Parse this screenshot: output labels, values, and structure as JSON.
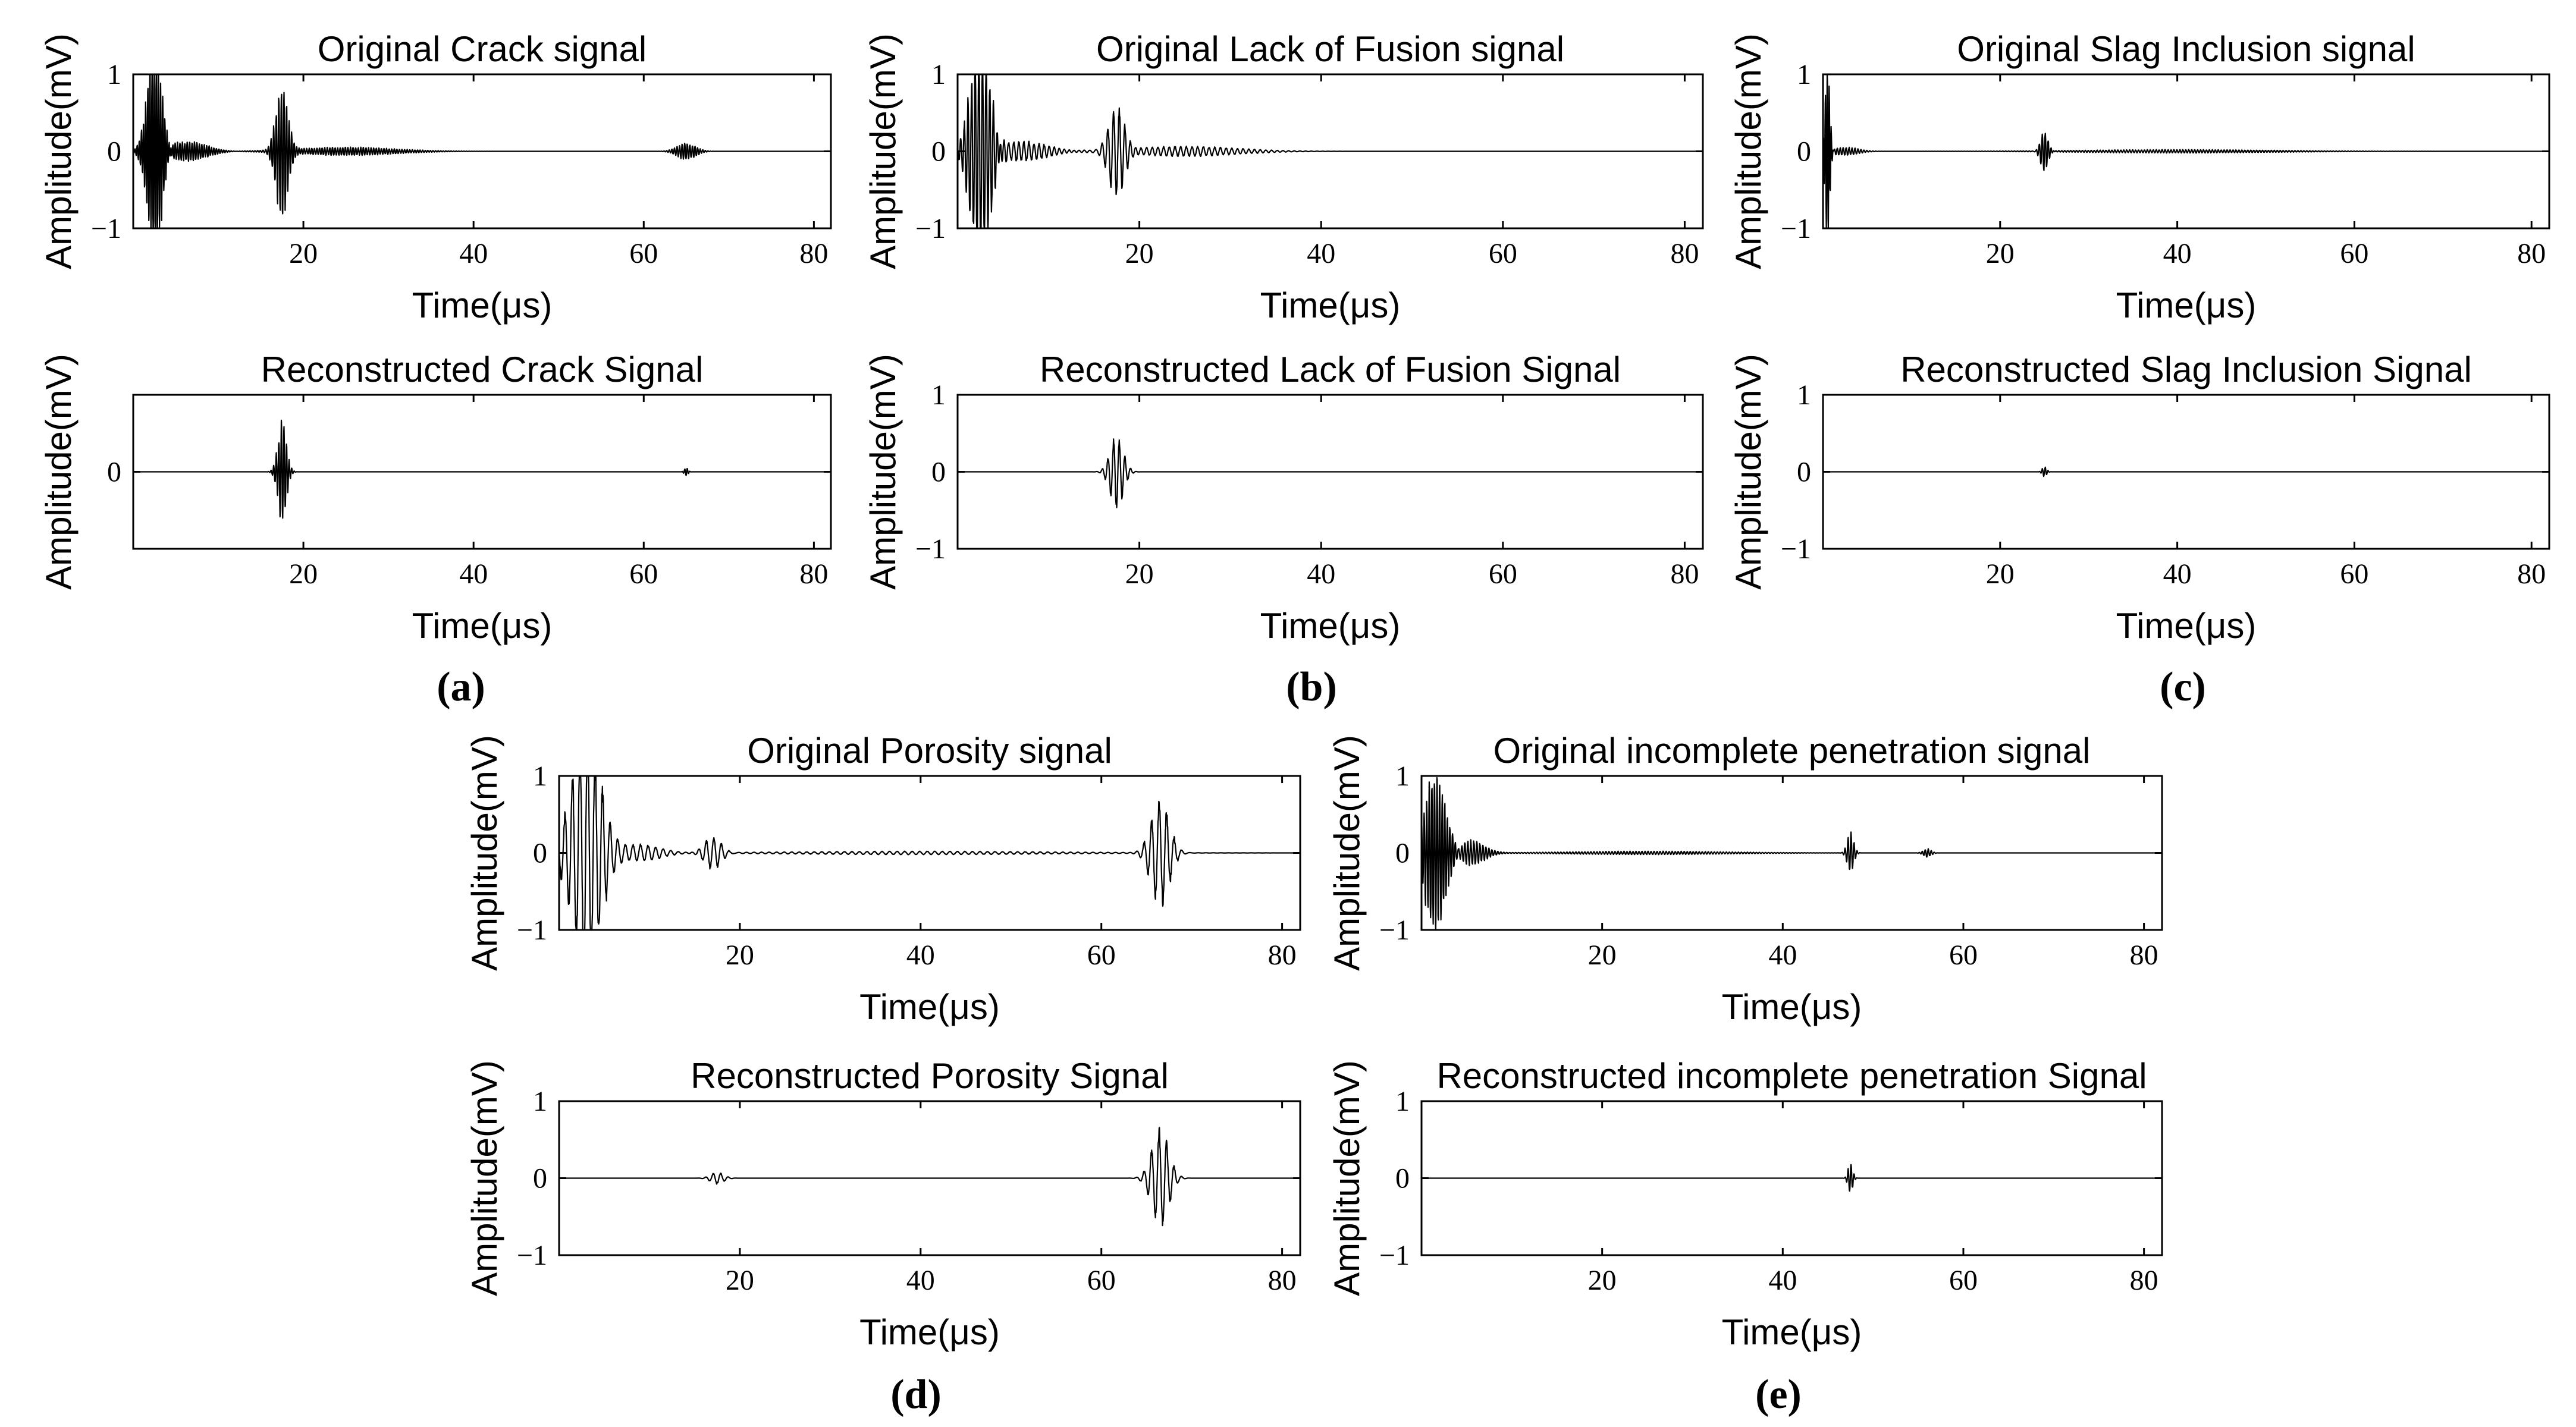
{
  "figure": {
    "panel_labels": [
      "(a)",
      "(b)",
      "(c)",
      "(d)",
      "(e)"
    ]
  },
  "chart_data": [
    {
      "panel": "(a)",
      "type": "line",
      "title": "Original Crack signal",
      "xlabel": "Time(μs)",
      "ylabel": "Amplitude(mV)",
      "xlim": [
        0,
        82
      ],
      "ylim": [
        -1,
        1
      ],
      "xticks": [
        20,
        40,
        60,
        80
      ],
      "yticks": [
        -1,
        0,
        1
      ],
      "ytick_labels": [
        "−1",
        "0",
        "1"
      ],
      "series": [
        {
          "values": [
            {
              "center": 2.5,
              "amplitude": 1.3,
              "width": 1.2,
              "freq": 4.0
            },
            {
              "center": 6.5,
              "amplitude": 0.12,
              "width": 3.0,
              "freq": 3.5
            },
            {
              "center": 17.5,
              "amplitude": 0.8,
              "width": 1.0,
              "freq": 3.3
            },
            {
              "center": 25,
              "amplitude": 0.05,
              "width": 8.0,
              "freq": 3.3
            },
            {
              "center": 65,
              "amplitude": 0.1,
              "width": 1.5,
              "freq": 3.3
            }
          ]
        }
      ]
    },
    {
      "panel": "(a)",
      "type": "line",
      "title": "Reconstructed Crack Signal",
      "xlabel": "Time(μs)",
      "ylabel": "Amplitude(mV)",
      "xlim": [
        0,
        82
      ],
      "ylim": [
        -1,
        1
      ],
      "xticks": [
        20,
        40,
        60,
        80
      ],
      "yticks": [
        0
      ],
      "ytick_labels": [
        "0"
      ],
      "series": [
        {
          "values": [
            {
              "center": 17.5,
              "amplitude": 0.6,
              "width": 0.7,
              "freq": 3.3
            },
            {
              "center": 65,
              "amplitude": 0.05,
              "width": 0.3,
              "freq": 3.3
            }
          ]
        }
      ]
    },
    {
      "panel": "(b)",
      "type": "line",
      "title": "Original Lack of Fusion signal",
      "xlabel": "Time(μs)",
      "ylabel": "Amplitude(mV)",
      "xlim": [
        0,
        82
      ],
      "ylim": [
        -1,
        1
      ],
      "xticks": [
        20,
        40,
        60,
        80
      ],
      "yticks": [
        -1,
        0,
        1
      ],
      "ytick_labels": [
        "−1",
        "0",
        "1"
      ],
      "series": [
        {
          "values": [
            {
              "center": 2.5,
              "amplitude": 1.4,
              "width": 1.5,
              "freq": 2.5
            },
            {
              "center": 7,
              "amplitude": 0.12,
              "width": 4.0,
              "freq": 1.8
            },
            {
              "center": 17.5,
              "amplitude": 0.55,
              "width": 1.2,
              "freq": 1.6
            },
            {
              "center": 25,
              "amplitude": 0.06,
              "width": 8.0,
              "freq": 1.6
            }
          ]
        }
      ]
    },
    {
      "panel": "(b)",
      "type": "line",
      "title": "Reconstructed Lack of Fusion Signal",
      "xlabel": "Time(μs)",
      "ylabel": "Amplitude(mV)",
      "xlim": [
        0,
        82
      ],
      "ylim": [
        -1,
        1
      ],
      "xticks": [
        20,
        40,
        60,
        80
      ],
      "yticks": [
        -1,
        0,
        1
      ],
      "ytick_labels": [
        "−1",
        "0",
        "1"
      ],
      "series": [
        {
          "values": [
            {
              "center": 17.5,
              "amplitude": 0.45,
              "width": 1.0,
              "freq": 1.6
            }
          ]
        }
      ]
    },
    {
      "panel": "(c)",
      "type": "line",
      "title": "Original Slag Inclusion signal",
      "xlabel": "Time(μs)",
      "ylabel": "Amplitude(mV)",
      "xlim": [
        0,
        82
      ],
      "ylim": [
        -1,
        1
      ],
      "xticks": [
        20,
        40,
        60,
        80
      ],
      "yticks": [
        -1,
        0,
        1
      ],
      "ytick_labels": [
        "−1",
        "0",
        "1"
      ],
      "series": [
        {
          "values": [
            {
              "center": 0.5,
              "amplitude": 1.2,
              "width": 0.35,
              "freq": 4.5
            },
            {
              "center": 2.5,
              "amplitude": 0.05,
              "width": 2.0,
              "freq": 3.0
            },
            {
              "center": 25,
              "amplitude": 0.25,
              "width": 0.6,
              "freq": 3.0
            },
            {
              "center": 40,
              "amplitude": 0.02,
              "width": 15.0,
              "freq": 3.0
            }
          ]
        }
      ]
    },
    {
      "panel": "(c)",
      "type": "line",
      "title": "Reconstructed Slag Inclusion Signal",
      "xlabel": "Time(μs)",
      "ylabel": "Amplitude(mV)",
      "xlim": [
        0,
        82
      ],
      "ylim": [
        -1,
        1
      ],
      "xticks": [
        20,
        40,
        60,
        80
      ],
      "yticks": [
        -1,
        0,
        1
      ],
      "ytick_labels": [
        "−1",
        "0",
        "1"
      ],
      "series": [
        {
          "values": [
            {
              "center": 25,
              "amplitude": 0.06,
              "width": 0.35,
              "freq": 3.0
            }
          ]
        }
      ]
    },
    {
      "panel": "(d)",
      "type": "line",
      "title": "Original Porosity signal",
      "xlabel": "Time(μs)",
      "ylabel": "Amplitude(mV)",
      "xlim": [
        0,
        82
      ],
      "ylim": [
        -1,
        1
      ],
      "xticks": [
        20,
        40,
        60,
        80
      ],
      "yticks": [
        -1,
        0,
        1
      ],
      "ytick_labels": [
        "−1",
        "0",
        "1"
      ],
      "series": [
        {
          "values": [
            {
              "center": 3,
              "amplitude": 1.5,
              "width": 2.2,
              "freq": 1.2
            },
            {
              "center": 9,
              "amplitude": 0.1,
              "width": 3.0,
              "freq": 1.2
            },
            {
              "center": 17,
              "amplitude": 0.2,
              "width": 1.3,
              "freq": 1.2
            },
            {
              "center": 40,
              "amplitude": 0.02,
              "width": 20.0,
              "freq": 1.2
            },
            {
              "center": 66.5,
              "amplitude": 0.65,
              "width": 1.4,
              "freq": 1.2
            }
          ]
        }
      ]
    },
    {
      "panel": "(d)",
      "type": "line",
      "title": "Reconstructed Porosity Signal",
      "xlabel": "Time(μs)",
      "ylabel": "Amplitude(mV)",
      "xlim": [
        0,
        82
      ],
      "ylim": [
        -1,
        1
      ],
      "xticks": [
        20,
        40,
        60,
        80
      ],
      "yticks": [
        -1,
        0,
        1
      ],
      "ytick_labels": [
        "−1",
        "0",
        "1"
      ],
      "series": [
        {
          "values": [
            {
              "center": 17.5,
              "amplitude": 0.07,
              "width": 1.0,
              "freq": 1.2
            },
            {
              "center": 66.5,
              "amplitude": 0.6,
              "width": 1.3,
              "freq": 1.2
            }
          ]
        }
      ]
    },
    {
      "panel": "(e)",
      "type": "line",
      "title": "Original incomplete penetration signal",
      "xlabel": "Time(μs)",
      "ylabel": "Amplitude(mV)",
      "xlim": [
        0,
        82
      ],
      "ylim": [
        -1,
        1
      ],
      "xticks": [
        20,
        40,
        60,
        80
      ],
      "yticks": [
        -1,
        0,
        1
      ],
      "ytick_labels": [
        "−1",
        "0",
        "1"
      ],
      "series": [
        {
          "values": [
            {
              "center": 1.5,
              "amplitude": 1.0,
              "width": 1.5,
              "freq": 3.5
            },
            {
              "center": 5.5,
              "amplitude": 0.15,
              "width": 2.0,
              "freq": 3.0
            },
            {
              "center": 25,
              "amplitude": 0.02,
              "width": 12.0,
              "freq": 3.0
            },
            {
              "center": 47.5,
              "amplitude": 0.25,
              "width": 0.5,
              "freq": 3.0
            },
            {
              "center": 56,
              "amplitude": 0.05,
              "width": 0.6,
              "freq": 3.0
            }
          ]
        }
      ]
    },
    {
      "panel": "(e)",
      "type": "line",
      "title": "Reconstructed incomplete penetration Signal",
      "xlabel": "Time(μs)",
      "ylabel": "Amplitude(mV)",
      "xlim": [
        0,
        82
      ],
      "ylim": [
        -1,
        1
      ],
      "xticks": [
        20,
        40,
        60,
        80
      ],
      "yticks": [
        -1,
        0,
        1
      ],
      "ytick_labels": [
        "−1",
        "0",
        "1"
      ],
      "series": [
        {
          "values": [
            {
              "center": 47.5,
              "amplitude": 0.2,
              "width": 0.35,
              "freq": 3.0
            }
          ]
        }
      ]
    }
  ]
}
